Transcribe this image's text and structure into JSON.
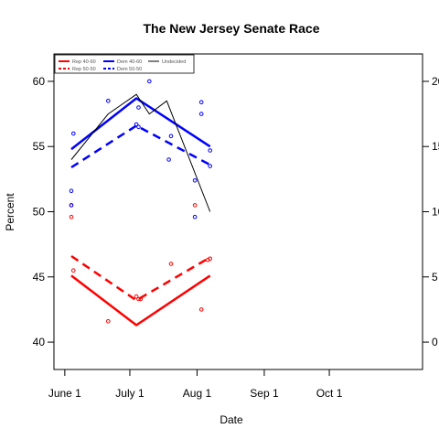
{
  "chart_data": {
    "type": "line",
    "title": "The New Jersey Senate Race",
    "xlabel": "Date",
    "ylabel": "Percent",
    "x_tick_labels": [
      "June 1",
      "July 1",
      "Aug 1",
      "Sep 1",
      "Oct 1"
    ],
    "x_tick_dates": [
      "2006-06-01",
      "2006-07-01",
      "2006-08-01",
      "2006-09-01",
      "2006-10-01"
    ],
    "xlim": [
      "2006-05-27",
      "2006-11-13"
    ],
    "ylim": [
      37.9,
      62.1
    ],
    "y_ticks": [
      40,
      45,
      50,
      55,
      60
    ],
    "y2_ticks": [
      0,
      5,
      10,
      15,
      20
    ],
    "y2lim": [
      -2.1,
      22.1
    ],
    "grid": false,
    "legend": {
      "position": "top-left",
      "entries": [
        {
          "name": "Rep 40-60",
          "color": "#ff0000",
          "style": "solid"
        },
        {
          "name": "Rep 50-50",
          "color": "#ff0000",
          "style": "dashed"
        },
        {
          "name": "Dem 40-60",
          "color": "#0000ff",
          "style": "solid"
        },
        {
          "name": "Dem 50-50",
          "color": "#0000ff",
          "style": "dashed"
        },
        {
          "name": "Undecided",
          "color": "#000000",
          "style": "thin"
        }
      ]
    },
    "series": [
      {
        "name": "Rep 40-60",
        "axis": "left",
        "color": "#ff0000",
        "style": "solid",
        "x": [
          "2006-06-04",
          "2006-07-04",
          "2006-08-07"
        ],
        "y": [
          45.1,
          41.3,
          45.1
        ]
      },
      {
        "name": "Rep 50-50",
        "axis": "left",
        "color": "#ff0000",
        "style": "dashed",
        "x": [
          "2006-06-04",
          "2006-07-04",
          "2006-08-07"
        ],
        "y": [
          46.6,
          43.2,
          46.5
        ]
      },
      {
        "name": "Dem 40-60",
        "axis": "left",
        "color": "#0000ff",
        "style": "solid",
        "x": [
          "2006-06-04",
          "2006-07-04",
          "2006-08-07"
        ],
        "y": [
          54.8,
          58.7,
          55.0
        ]
      },
      {
        "name": "Dem 50-50",
        "axis": "left",
        "color": "#0000ff",
        "style": "dashed",
        "x": [
          "2006-06-04",
          "2006-07-04",
          "2006-08-07"
        ],
        "y": [
          53.4,
          56.6,
          53.6
        ]
      },
      {
        "name": "Undecided",
        "axis": "right",
        "color": "#000000",
        "style": "thin",
        "x": [
          "2006-06-04",
          "2006-06-21",
          "2006-07-04",
          "2006-07-10",
          "2006-07-18",
          "2006-08-07"
        ],
        "y": [
          14.0,
          17.5,
          19.0,
          17.5,
          18.5,
          10.0
        ]
      }
    ],
    "points": [
      {
        "series": "Rep 40-60",
        "color": "#ff0000",
        "x": [
          "2006-06-04",
          "2006-06-05",
          "2006-06-21",
          "2006-07-05",
          "2006-07-20",
          "2006-08-03",
          "2006-08-07"
        ],
        "y": [
          49.6,
          45.5,
          41.6,
          43.3,
          46.0,
          42.5,
          46.4
        ]
      },
      {
        "series": "Rep 50-50",
        "color": "#ff0000",
        "x": [
          "2006-06-04",
          "2006-07-04",
          "2006-07-06",
          "2006-07-31",
          "2006-08-06"
        ],
        "y": [
          50.5,
          43.5,
          43.3,
          50.5,
          46.3
        ]
      },
      {
        "series": "Dem 40-60",
        "color": "#0000ff",
        "x": [
          "2006-06-04",
          "2006-06-05",
          "2006-06-21",
          "2006-07-05",
          "2006-07-20",
          "2006-07-31",
          "2006-08-03",
          "2006-08-07"
        ],
        "y": [
          51.6,
          56.0,
          58.5,
          58.0,
          55.8,
          52.4,
          58.4,
          54.7
        ]
      },
      {
        "series": "Dem 50-50",
        "color": "#0000ff",
        "x": [
          "2006-06-04",
          "2006-07-04",
          "2006-07-05",
          "2006-07-10",
          "2006-07-19",
          "2006-07-31",
          "2006-08-03",
          "2006-08-07"
        ],
        "y": [
          50.5,
          56.7,
          56.5,
          60.0,
          54.0,
          49.6,
          57.5,
          53.5
        ]
      }
    ]
  }
}
